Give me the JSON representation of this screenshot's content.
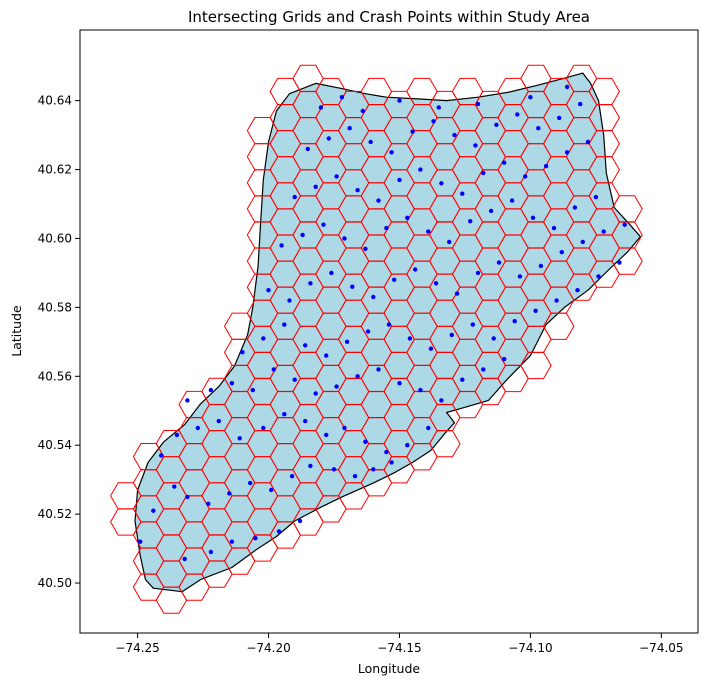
{
  "chart_data": {
    "type": "map",
    "title": "Intersecting Grids and Crash Points within Study Area",
    "xlabel": "Longitude",
    "ylabel": "Latitude",
    "xlim": [
      -74.272,
      -74.036
    ],
    "ylim": [
      40.4855,
      40.6605
    ],
    "x_ticks": [
      -74.25,
      -74.2,
      -74.15,
      -74.1,
      -74.05
    ],
    "x_tick_labels": [
      "−74.25",
      "−74.20",
      "−74.15",
      "−74.10",
      "−74.05"
    ],
    "y_ticks": [
      40.5,
      40.52,
      40.54,
      40.56,
      40.58,
      40.6,
      40.62,
      40.64
    ],
    "y_tick_labels": [
      "40.50",
      "40.52",
      "40.54",
      "40.56",
      "40.58",
      "40.60",
      "40.62",
      "40.64"
    ],
    "colors": {
      "land_fill": "#add8e6",
      "land_edge": "#000000",
      "grid_edge": "#ff0000",
      "crash_points": "#0000ff"
    },
    "grid": false,
    "hex_grid": {
      "hex_radius_deg_lon": 0.0058,
      "col_spacing_deg_lon": 0.0087,
      "row_spacing_deg_lat": 0.00757,
      "origin_lon": -74.2545,
      "origin_lat": 40.5026
    },
    "land_polygon": [
      [
        -74.244,
        40.4985
      ],
      [
        -74.233,
        40.4975
      ],
      [
        -74.226,
        40.501
      ],
      [
        -74.214,
        40.5045
      ],
      [
        -74.205,
        40.5095
      ],
      [
        -74.197,
        40.5135
      ],
      [
        -74.19,
        40.518
      ],
      [
        -74.18,
        40.522
      ],
      [
        -74.172,
        40.525
      ],
      [
        -74.16,
        40.529
      ],
      [
        -74.152,
        40.532
      ],
      [
        -74.145,
        40.535
      ],
      [
        -74.138,
        40.5385
      ],
      [
        -74.132,
        40.544
      ],
      [
        -74.129,
        40.5465
      ],
      [
        -74.132,
        40.5495
      ],
      [
        -74.125,
        40.551
      ],
      [
        -74.116,
        40.553
      ],
      [
        -74.109,
        40.559
      ],
      [
        -74.1,
        40.566
      ],
      [
        -74.094,
        40.575
      ],
      [
        -74.087,
        40.58
      ],
      [
        -74.078,
        40.585
      ],
      [
        -74.07,
        40.591
      ],
      [
        -74.063,
        40.596
      ],
      [
        -74.058,
        40.6005
      ],
      [
        -74.062,
        40.604
      ],
      [
        -74.068,
        40.609
      ],
      [
        -74.071,
        40.619
      ],
      [
        -74.072,
        40.63
      ],
      [
        -74.074,
        40.64
      ],
      [
        -74.077,
        40.645
      ],
      [
        -74.08,
        40.648
      ],
      [
        -74.087,
        40.6465
      ],
      [
        -74.097,
        40.6445
      ],
      [
        -74.108,
        40.6425
      ],
      [
        -74.12,
        40.641
      ],
      [
        -74.132,
        40.64
      ],
      [
        -74.143,
        40.6405
      ],
      [
        -74.155,
        40.641
      ],
      [
        -74.163,
        40.642
      ],
      [
        -74.172,
        40.6435
      ],
      [
        -74.182,
        40.645
      ],
      [
        -74.192,
        40.642
      ],
      [
        -74.197,
        40.637
      ],
      [
        -74.2,
        40.628
      ],
      [
        -74.202,
        40.617
      ],
      [
        -74.203,
        40.605
      ],
      [
        -74.204,
        40.592
      ],
      [
        -74.206,
        40.58
      ],
      [
        -74.208,
        40.572
      ],
      [
        -74.213,
        40.563
      ],
      [
        -74.219,
        40.557
      ],
      [
        -74.226,
        40.552
      ],
      [
        -74.232,
        40.546
      ],
      [
        -74.24,
        40.541
      ],
      [
        -74.246,
        40.535
      ],
      [
        -74.25,
        40.527
      ],
      [
        -74.251,
        40.518
      ],
      [
        -74.249,
        40.508
      ],
      [
        -74.247,
        40.501
      ]
    ],
    "crash_points": [
      [
        -74.249,
        40.512
      ],
      [
        -74.244,
        40.521
      ],
      [
        -74.236,
        40.528
      ],
      [
        -74.231,
        40.525
      ],
      [
        -74.223,
        40.523
      ],
      [
        -74.215,
        40.526
      ],
      [
        -74.207,
        40.529
      ],
      [
        -74.199,
        40.527
      ],
      [
        -74.191,
        40.531
      ],
      [
        -74.184,
        40.534
      ],
      [
        -74.175,
        40.533
      ],
      [
        -74.167,
        40.531
      ],
      [
        -74.16,
        40.533
      ],
      [
        -74.153,
        40.535
      ],
      [
        -74.232,
        40.507
      ],
      [
        -74.222,
        40.509
      ],
      [
        -74.214,
        40.512
      ],
      [
        -74.205,
        40.513
      ],
      [
        -74.196,
        40.515
      ],
      [
        -74.188,
        40.518
      ],
      [
        -74.241,
        40.537
      ],
      [
        -74.235,
        40.543
      ],
      [
        -74.227,
        40.545
      ],
      [
        -74.219,
        40.547
      ],
      [
        -74.211,
        40.542
      ],
      [
        -74.202,
        40.545
      ],
      [
        -74.194,
        40.549
      ],
      [
        -74.186,
        40.547
      ],
      [
        -74.178,
        40.543
      ],
      [
        -74.171,
        40.545
      ],
      [
        -74.163,
        40.541
      ],
      [
        -74.155,
        40.538
      ],
      [
        -74.147,
        40.54
      ],
      [
        -74.139,
        40.545
      ],
      [
        -74.231,
        40.553
      ],
      [
        -74.222,
        40.556
      ],
      [
        -74.214,
        40.558
      ],
      [
        -74.206,
        40.556
      ],
      [
        -74.198,
        40.562
      ],
      [
        -74.19,
        40.559
      ],
      [
        -74.182,
        40.555
      ],
      [
        -74.174,
        40.557
      ],
      [
        -74.166,
        40.56
      ],
      [
        -74.158,
        40.562
      ],
      [
        -74.15,
        40.558
      ],
      [
        -74.142,
        40.556
      ],
      [
        -74.134,
        40.553
      ],
      [
        -74.126,
        40.559
      ],
      [
        -74.118,
        40.562
      ],
      [
        -74.11,
        40.565
      ],
      [
        -74.21,
        40.567
      ],
      [
        -74.202,
        40.571
      ],
      [
        -74.194,
        40.575
      ],
      [
        -74.186,
        40.569
      ],
      [
        -74.178,
        40.566
      ],
      [
        -74.17,
        40.57
      ],
      [
        -74.162,
        40.573
      ],
      [
        -74.154,
        40.575
      ],
      [
        -74.146,
        40.571
      ],
      [
        -74.138,
        40.568
      ],
      [
        -74.13,
        40.572
      ],
      [
        -74.122,
        40.575
      ],
      [
        -74.114,
        40.571
      ],
      [
        -74.106,
        40.576
      ],
      [
        -74.098,
        40.579
      ],
      [
        -74.09,
        40.582
      ],
      [
        -74.082,
        40.585
      ],
      [
        -74.074,
        40.589
      ],
      [
        -74.066,
        40.593
      ],
      [
        -74.2,
        40.585
      ],
      [
        -74.192,
        40.582
      ],
      [
        -74.184,
        40.587
      ],
      [
        -74.176,
        40.59
      ],
      [
        -74.168,
        40.586
      ],
      [
        -74.16,
        40.583
      ],
      [
        -74.152,
        40.588
      ],
      [
        -74.144,
        40.591
      ],
      [
        -74.136,
        40.587
      ],
      [
        -74.128,
        40.584
      ],
      [
        -74.12,
        40.59
      ],
      [
        -74.112,
        40.593
      ],
      [
        -74.104,
        40.589
      ],
      [
        -74.096,
        40.592
      ],
      [
        -74.088,
        40.596
      ],
      [
        -74.08,
        40.599
      ],
      [
        -74.072,
        40.602
      ],
      [
        -74.064,
        40.604
      ],
      [
        -74.195,
        40.598
      ],
      [
        -74.187,
        40.601
      ],
      [
        -74.179,
        40.604
      ],
      [
        -74.171,
        40.6
      ],
      [
        -74.163,
        40.597
      ],
      [
        -74.155,
        40.603
      ],
      [
        -74.147,
        40.606
      ],
      [
        -74.139,
        40.602
      ],
      [
        -74.131,
        40.599
      ],
      [
        -74.123,
        40.605
      ],
      [
        -74.115,
        40.608
      ],
      [
        -74.107,
        40.611
      ],
      [
        -74.099,
        40.606
      ],
      [
        -74.091,
        40.603
      ],
      [
        -74.083,
        40.609
      ],
      [
        -74.075,
        40.612
      ],
      [
        -74.19,
        40.612
      ],
      [
        -74.182,
        40.615
      ],
      [
        -74.174,
        40.618
      ],
      [
        -74.166,
        40.614
      ],
      [
        -74.158,
        40.611
      ],
      [
        -74.15,
        40.617
      ],
      [
        -74.142,
        40.62
      ],
      [
        -74.134,
        40.616
      ],
      [
        -74.126,
        40.613
      ],
      [
        -74.118,
        40.619
      ],
      [
        -74.11,
        40.622
      ],
      [
        -74.102,
        40.618
      ],
      [
        -74.094,
        40.621
      ],
      [
        -74.086,
        40.625
      ],
      [
        -74.078,
        40.628
      ],
      [
        -74.185,
        40.626
      ],
      [
        -74.177,
        40.629
      ],
      [
        -74.169,
        40.632
      ],
      [
        -74.161,
        40.628
      ],
      [
        -74.153,
        40.625
      ],
      [
        -74.145,
        40.631
      ],
      [
        -74.137,
        40.634
      ],
      [
        -74.129,
        40.63
      ],
      [
        -74.121,
        40.627
      ],
      [
        -74.113,
        40.633
      ],
      [
        -74.105,
        40.636
      ],
      [
        -74.097,
        40.632
      ],
      [
        -74.089,
        40.635
      ],
      [
        -74.081,
        40.639
      ],
      [
        -74.18,
        40.638
      ],
      [
        -74.172,
        40.641
      ],
      [
        -74.164,
        40.637
      ],
      [
        -74.15,
        40.64
      ],
      [
        -74.135,
        40.638
      ],
      [
        -74.12,
        40.639
      ],
      [
        -74.1,
        40.641
      ],
      [
        -74.086,
        40.644
      ]
    ]
  }
}
